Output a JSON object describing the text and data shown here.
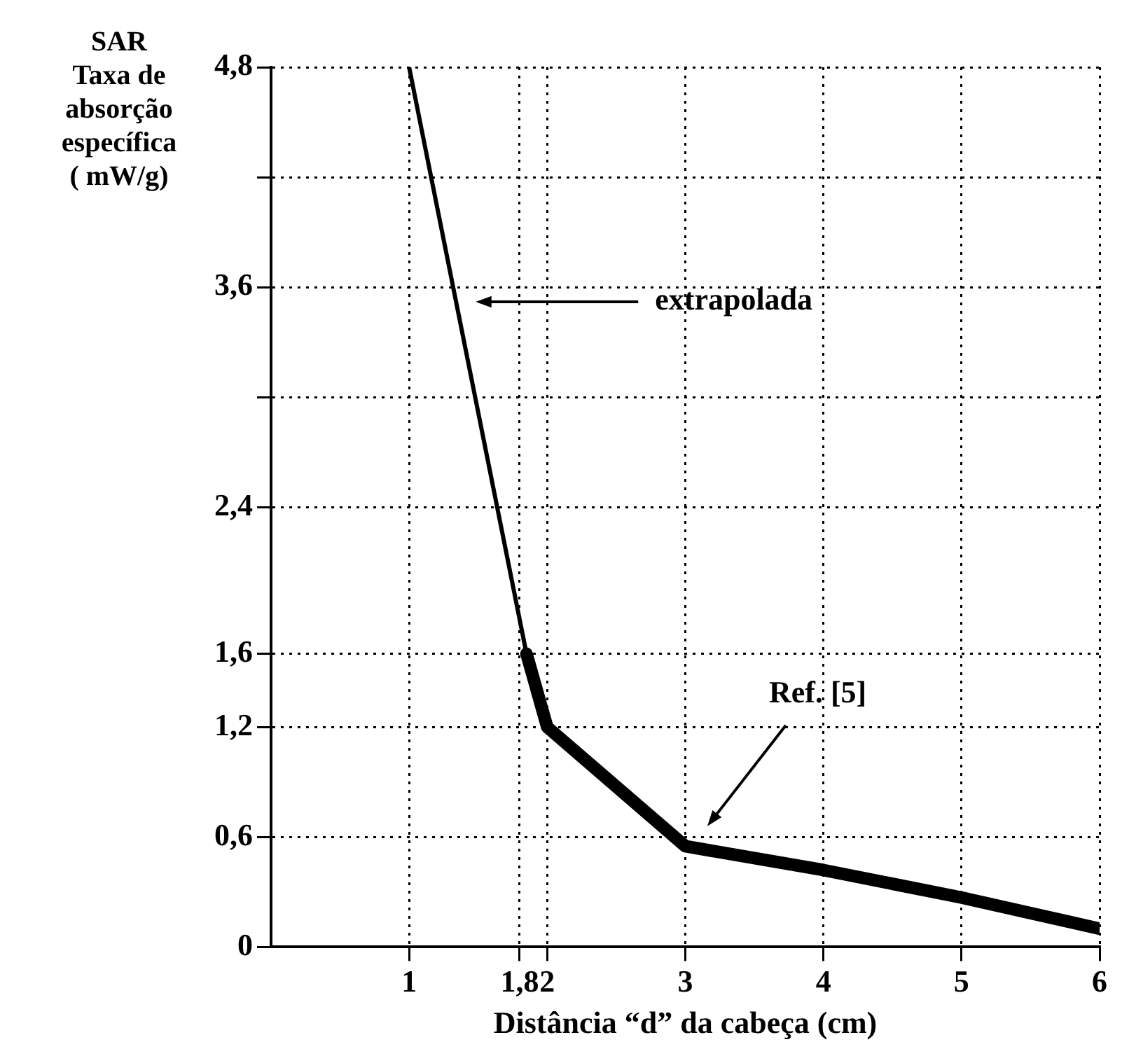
{
  "chart_data": {
    "type": "line",
    "xlabel": "Distância “d” da cabeça (cm)",
    "ylabel": "SAR\nTaxa de\nabsorção\nespecífica\n( mW/g)",
    "xlim": [
      0,
      6
    ],
    "xticks": [
      1,
      {
        "value": 1.8,
        "label": "1,8"
      },
      2,
      3,
      4,
      5,
      6
    ],
    "ylim": [
      0,
      4.8
    ],
    "yticks": [
      0,
      {
        "value": 0.6,
        "label": "0,6"
      },
      {
        "value": 1.2,
        "label": "1,2"
      },
      {
        "value": 1.6,
        "label": "1,6"
      },
      {
        "value": 2.4,
        "label": "2,4"
      },
      {
        "value": 3.0,
        "label": null
      },
      {
        "value": 3.6,
        "label": "3,6"
      },
      {
        "value": 4.2,
        "label": null
      },
      {
        "value": 4.8,
        "label": "4,8"
      }
    ],
    "series": [
      {
        "color": "#000000",
        "x": [
          1,
          1.85
        ],
        "values": [
          4.8,
          1.6
        ]
      },
      {
        "color": "#000000",
        "x": [
          1.85,
          2,
          3,
          4,
          5,
          6
        ],
        "values": [
          1.6,
          1.2,
          0.55,
          0.42,
          0.27,
          0.1
        ]
      }
    ],
    "annotations": [
      "extrapolada",
      "Ref. [5]"
    ],
    "grid": true,
    "legend": false,
    "marker": "none",
    "line_style": "solid"
  }
}
